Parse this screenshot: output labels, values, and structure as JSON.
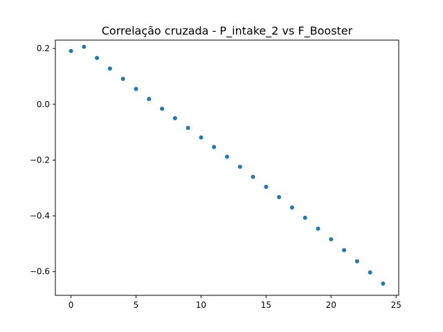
{
  "chart_data": {
    "type": "scatter",
    "title": "Correlação cruzada - P_intake_2 vs F_Booster",
    "xlabel": "",
    "ylabel": "",
    "xlim": [
      -1.2,
      25.2
    ],
    "ylim": [
      -0.685,
      0.23
    ],
    "x_ticks": [
      0,
      5,
      10,
      15,
      20,
      25
    ],
    "y_ticks": [
      0.2,
      0.0,
      -0.2,
      -0.4,
      -0.6
    ],
    "x_tick_labels": [
      "0",
      "5",
      "10",
      "15",
      "20",
      "25"
    ],
    "y_tick_labels": [
      "0.2",
      "0.0",
      "−0.2",
      "−0.4",
      "−0.6"
    ],
    "grid": false,
    "marker_color": "#1f77b4",
    "series": [
      {
        "x": [
          0,
          1,
          2,
          3,
          4,
          5,
          6,
          7,
          8,
          9,
          10,
          11,
          12,
          13,
          14,
          15,
          16,
          17,
          18,
          19,
          20,
          21,
          22,
          23,
          24
        ],
        "y": [
          0.191,
          0.206,
          0.166,
          0.128,
          0.091,
          0.055,
          0.019,
          -0.016,
          -0.05,
          -0.085,
          -0.119,
          -0.153,
          -0.188,
          -0.224,
          -0.26,
          -0.296,
          -0.333,
          -0.37,
          -0.407,
          -0.446,
          -0.484,
          -0.523,
          -0.563,
          -0.603,
          -0.643
        ]
      }
    ]
  }
}
